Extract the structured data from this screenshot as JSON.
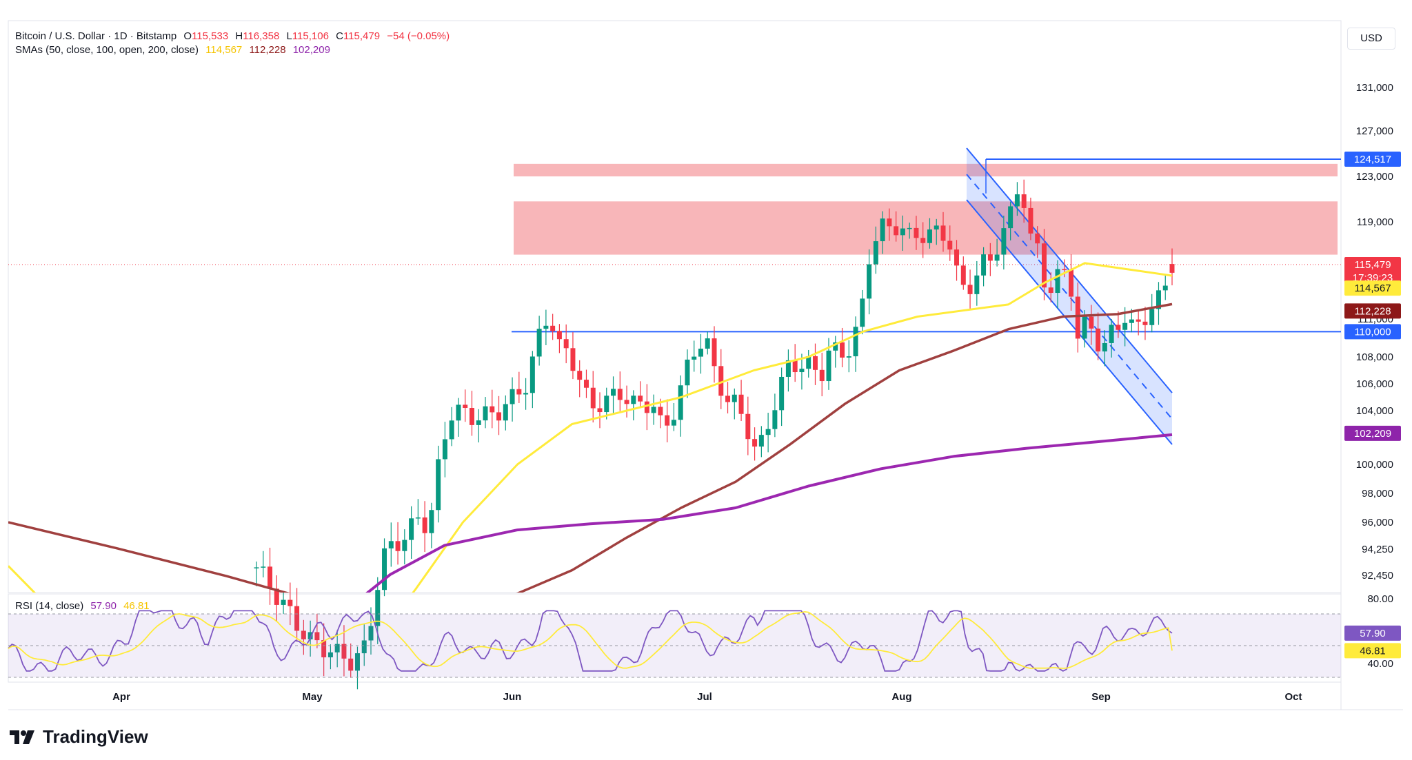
{
  "header": {
    "symbol": "Bitcoin / U.S. Dollar · 1D · Bitstamp",
    "open_label": "O",
    "open": "115,533",
    "high_label": "H",
    "high": "116,358",
    "low_label": "L",
    "low": "115,106",
    "close_label": "C",
    "close": "115,479",
    "change": "−54 (−0.05%)",
    "sma_label": "SMAs (50, close, 100, open, 200, close)",
    "sma50": "114,567",
    "sma100": "112,228",
    "sma200": "102,209",
    "rsi_label": "RSI (14, close)",
    "rsi_value": "57.90",
    "rsi_ma": "46.81"
  },
  "currency": "USD",
  "logo_text": "TradingView",
  "price_badges": {
    "top": "124,517",
    "last_price": "115,479",
    "countdown": "17:39:23",
    "sma50": "114,567",
    "sma100": "112,228",
    "level": "110,000",
    "sma200": "102,209",
    "rsi": "57.90",
    "rsi_ma": "46.81"
  },
  "colors": {
    "up": "#089981",
    "down": "#f23645",
    "sma50": "#ffeb3b",
    "sma100": "#a0403f",
    "sma200": "#9c27b0",
    "resistance_zone": "#f7a9ad",
    "channel": "#2962ff",
    "rsi": "#7e57c2"
  },
  "chart_data": [
    {
      "type": "candlestick",
      "title": "Bitcoin / U.S. Dollar · 1D · Bitstamp",
      "y_axis_ticks": [
        "92,450",
        "94,250",
        "96,000",
        "98,000",
        "100,000",
        "104,000",
        "106,000",
        "108,000",
        "111,000",
        "119,000",
        "123,000",
        "127,000",
        "131,000"
      ],
      "x_axis_ticks": [
        "Apr",
        "May",
        "Jun",
        "Jul",
        "Aug",
        "Sep",
        "Oct"
      ],
      "ohlc_last": {
        "open": 115533,
        "high": 116358,
        "low": 115106,
        "close": 115479
      },
      "series": [
        {
          "name": "SMA 50",
          "last": 114567,
          "points": [
            [
              0,
              93100
            ],
            [
              20,
              88000
            ],
            [
              40,
              84800
            ],
            [
              60,
              84000
            ],
            [
              80,
              85000
            ],
            [
              100,
              87500
            ],
            [
              112,
              91500
            ],
            [
              125,
              96000
            ],
            [
              140,
              100000
            ],
            [
              155,
              103000
            ],
            [
              170,
              104000
            ],
            [
              185,
              105000
            ],
            [
              195,
              106000
            ],
            [
              205,
              107000
            ],
            [
              220,
              108000
            ],
            [
              235,
              110000
            ],
            [
              250,
              111200
            ],
            [
              265,
              111800
            ],
            [
              275,
              112200
            ],
            [
              285,
              114000
            ],
            [
              296,
              115600
            ],
            [
              310,
              115000
            ],
            [
              320,
              114567
            ]
          ]
        },
        {
          "name": "SMA 100",
          "last": 112228,
          "points": [
            [
              0,
              96000
            ],
            [
              30,
              94300
            ],
            [
              60,
              92400
            ],
            [
              80,
              91000
            ],
            [
              100,
              90000
            ],
            [
              120,
              90500
            ],
            [
              140,
              91200
            ],
            [
              155,
              92800
            ],
            [
              170,
              95000
            ],
            [
              185,
              97000
            ],
            [
              200,
              98800
            ],
            [
              215,
              101500
            ],
            [
              230,
              104500
            ],
            [
              245,
              107000
            ],
            [
              260,
              108500
            ],
            [
              275,
              110200
            ],
            [
              290,
              111200
            ],
            [
              305,
              111400
            ],
            [
              320,
              112228
            ]
          ]
        },
        {
          "name": "SMA 200",
          "last": 102209,
          "points": [
            [
              60,
              87300
            ],
            [
              90,
              89500
            ],
            [
              105,
              92500
            ],
            [
              120,
              94500
            ],
            [
              140,
              95500
            ],
            [
              160,
              95900
            ],
            [
              180,
              96200
            ],
            [
              200,
              97000
            ],
            [
              220,
              98500
            ],
            [
              240,
              99700
            ],
            [
              260,
              100600
            ],
            [
              280,
              101200
            ],
            [
              300,
              101700
            ],
            [
              320,
              102209
            ]
          ]
        }
      ],
      "levels": [
        {
          "label": "124,517",
          "value": 124517
        },
        {
          "label": "110,000",
          "value": 110000
        }
      ],
      "resistance_zones": [
        [
          123000,
          124100
        ],
        [
          116300,
          120800
        ]
      ]
    },
    {
      "type": "line",
      "title": "RSI (14, close)",
      "y_axis_ticks": [
        "80.00",
        "40.00"
      ],
      "bands": {
        "upper": 70,
        "middle": 50,
        "lower": 30
      },
      "series": [
        {
          "name": "RSI",
          "last": 57.9
        },
        {
          "name": "RSI MA",
          "last": 46.81
        }
      ]
    }
  ]
}
